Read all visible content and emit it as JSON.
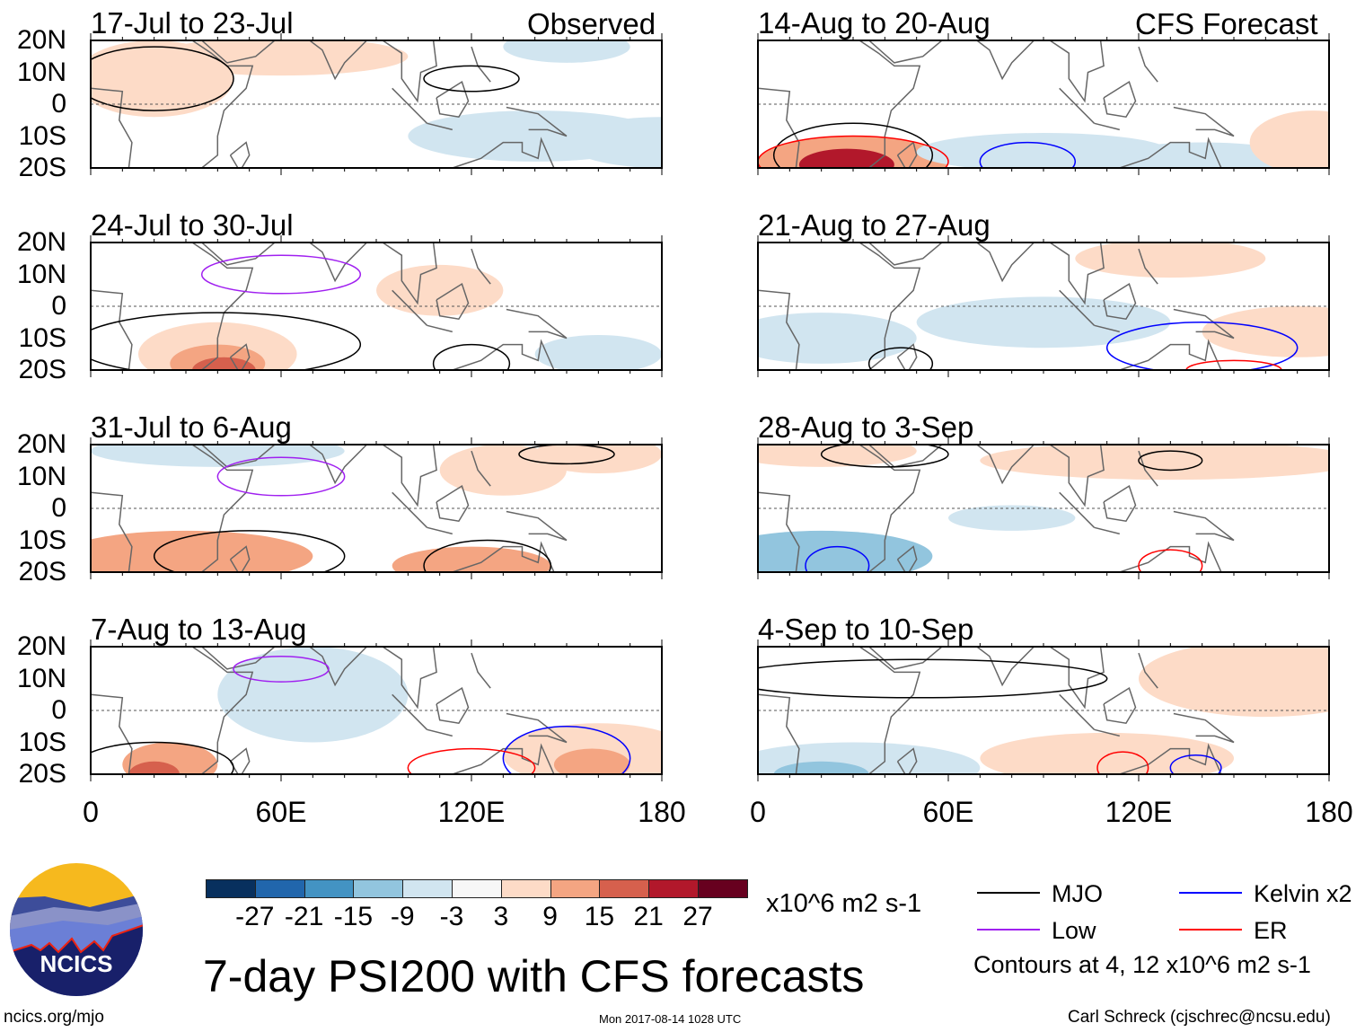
{
  "header": {
    "observed_label": "Observed",
    "forecast_label": "CFS Forecast"
  },
  "chart_data": {
    "type": "heatmap",
    "title": "7-day PSI200 with CFS forecasts",
    "variable_units": "x10^6 m2 s-1",
    "lat_ticks": [
      "20N",
      "10N",
      "0",
      "10S",
      "20S"
    ],
    "lon_ticks": [
      "0",
      "60E",
      "120E",
      "180"
    ],
    "lat_range": [
      -20,
      20
    ],
    "lon_range": [
      0,
      180
    ],
    "panels": [
      {
        "title": "17-Jul to 23-Jul",
        "type": "observed"
      },
      {
        "title": "24-Jul to 30-Jul",
        "type": "observed"
      },
      {
        "title": "31-Jul to 6-Aug",
        "type": "observed"
      },
      {
        "title": "7-Aug to 13-Aug",
        "type": "observed"
      },
      {
        "title": "14-Aug to 20-Aug",
        "type": "forecast"
      },
      {
        "title": "21-Aug to 27-Aug",
        "type": "forecast"
      },
      {
        "title": "28-Aug to 3-Sep",
        "type": "forecast"
      },
      {
        "title": "4-Sep to 10-Sep",
        "type": "forecast"
      }
    ],
    "colorbar": {
      "levels": [
        "-27",
        "-21",
        "-15",
        "-9",
        "-3",
        "3",
        "9",
        "15",
        "21",
        "27"
      ],
      "colors": [
        "#08305e",
        "#2166ac",
        "#4393c3",
        "#92c5de",
        "#d1e5f0",
        "#f7f7f7",
        "#fddbc7",
        "#f4a582",
        "#d6604d",
        "#b2182b",
        "#67001f"
      ]
    },
    "legend": [
      {
        "label": "MJO",
        "color": "#000000"
      },
      {
        "label": "Kelvin x2",
        "color": "#0000ff"
      },
      {
        "label": "Low",
        "color": "#a020f0"
      },
      {
        "label": "ER",
        "color": "#ff0000"
      }
    ],
    "contour_note": "Contours at 4, 12 x10^6 m2 s-1"
  },
  "footer": {
    "url": "ncics.org/mjo",
    "timestamp": "Mon 2017-08-14 1028 UTC",
    "credit": "Carl Schreck (cjschrec@ncsu.edu)",
    "logo_text": "NCICS"
  }
}
